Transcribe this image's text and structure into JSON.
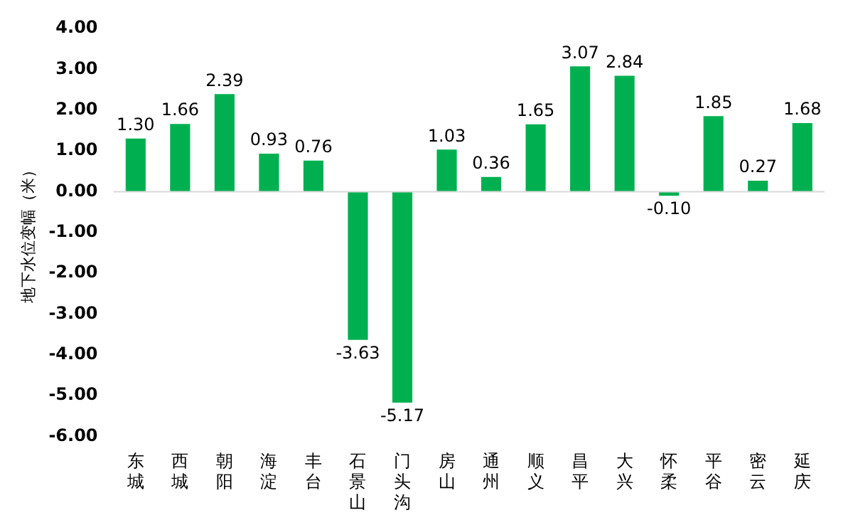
{
  "chart_data": {
    "type": "bar",
    "ylabel": "地下水位变幅（米）",
    "categories": [
      "东城",
      "西城",
      "朝阳",
      "海淀",
      "丰台",
      "石景山",
      "门头沟",
      "房山",
      "通州",
      "顺义",
      "昌平",
      "大兴",
      "怀柔",
      "平谷",
      "密云",
      "延庆"
    ],
    "values": [
      1.3,
      1.66,
      2.39,
      0.93,
      0.76,
      -3.63,
      -5.17,
      1.03,
      0.36,
      1.65,
      3.07,
      2.84,
      -0.1,
      1.85,
      0.27,
      1.68
    ],
    "value_labels": [
      "1.30",
      "1.66",
      "2.39",
      "0.93",
      "0.76",
      "-3.63",
      "-5.17",
      "1.03",
      "0.36",
      "1.65",
      "3.07",
      "2.84",
      "-0.10",
      "1.85",
      "0.27",
      "1.68"
    ],
    "color": "#00b050",
    "ylim": [
      -6,
      4
    ],
    "yticks": [
      {
        "value": -6,
        "label": "-6.00"
      },
      {
        "value": -5,
        "label": "-5.00"
      },
      {
        "value": -4,
        "label": "-4.00"
      },
      {
        "value": -3,
        "label": "-3.00"
      },
      {
        "value": -2,
        "label": "-2.00"
      },
      {
        "value": -1,
        "label": "-1.00"
      },
      {
        "value": 0,
        "label": "0.00"
      },
      {
        "value": 1,
        "label": "1.00"
      },
      {
        "value": 2,
        "label": "2.00"
      },
      {
        "value": 3,
        "label": "3.00"
      },
      {
        "value": 4,
        "label": "4.00"
      }
    ],
    "ref_lines": [
      {
        "axis": "y",
        "value": 0,
        "color": "#d9d9d9"
      }
    ],
    "grid": false,
    "legend": false
  }
}
